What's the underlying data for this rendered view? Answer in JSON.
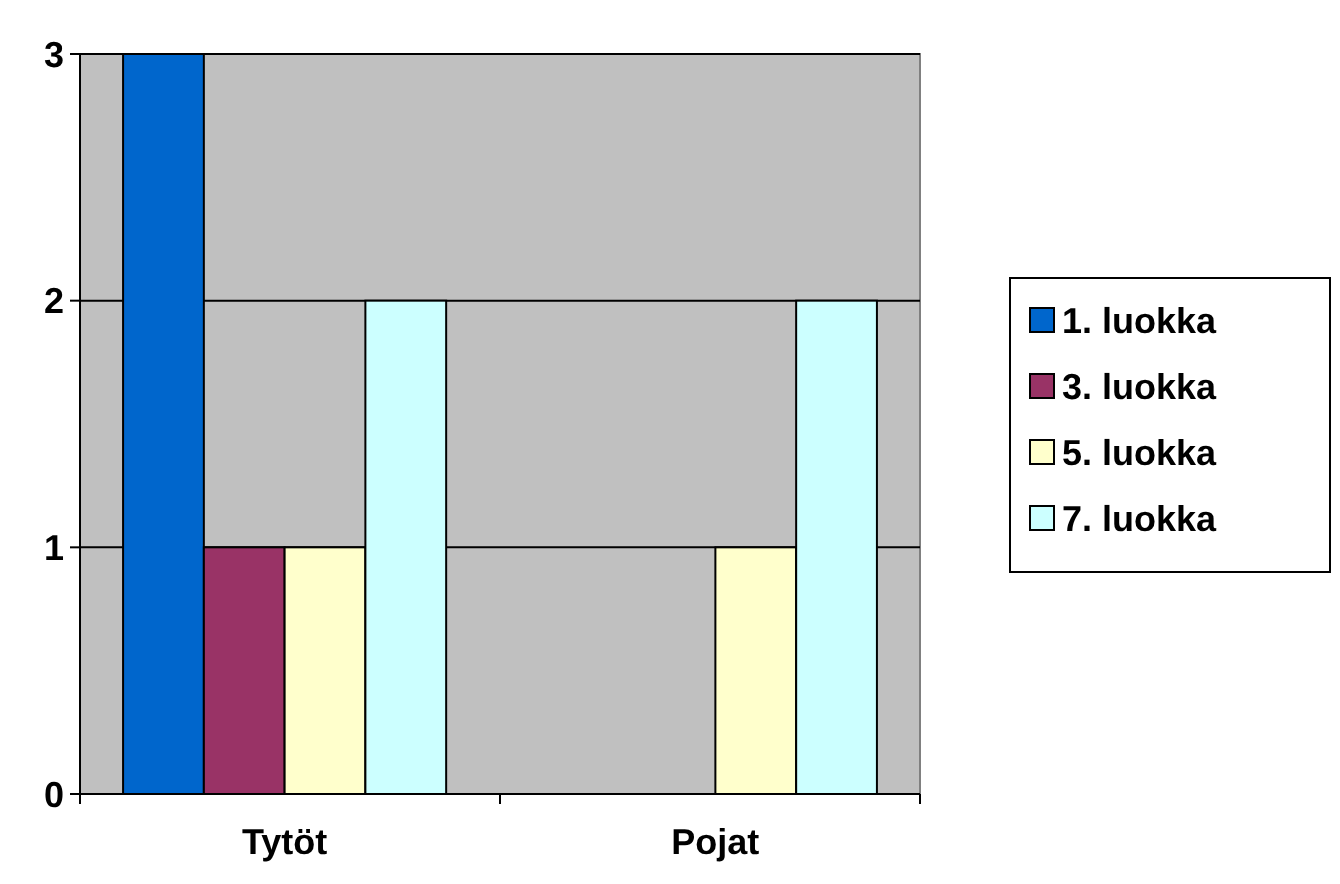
{
  "chart_data": {
    "type": "bar",
    "categories": [
      "Tytöt",
      "Pojat"
    ],
    "series": [
      {
        "name": "1. luokka",
        "color": "#0066cc",
        "values": [
          3,
          0
        ]
      },
      {
        "name": "3. luokka",
        "color": "#993366",
        "values": [
          1,
          0
        ]
      },
      {
        "name": "5. luokka",
        "color": "#ffffcc",
        "values": [
          1,
          1
        ]
      },
      {
        "name": "7. luokka",
        "color": "#ccffff",
        "values": [
          2,
          2
        ]
      }
    ],
    "ylim": [
      0,
      3
    ],
    "yticks": [
      0,
      1,
      2,
      3
    ],
    "grid": "y",
    "legend": "right"
  }
}
